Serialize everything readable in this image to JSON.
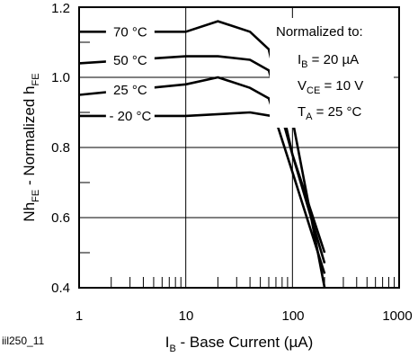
{
  "figure_id": "iil250_11",
  "chart_data": {
    "type": "line",
    "x_scale": "log",
    "xlim": [
      1,
      1000
    ],
    "ylim": [
      0.4,
      1.2
    ],
    "grid": true,
    "x_ticks": [
      "1",
      "10",
      "100",
      "1000"
    ],
    "y_ticks": [
      "0.4",
      "0.6",
      "0.8",
      "1.0",
      "1.2"
    ],
    "xlabel": {
      "prefix": "I",
      "sub": "B",
      "suffix": " - Base Current (µA)"
    },
    "ylabel": {
      "p1": "Nh",
      "sub1": "FE",
      "p2": " - Normalized h",
      "sub2": "FE"
    },
    "annotation": {
      "heading": "Normalized to:",
      "lines": [
        {
          "pre": "I",
          "sub": "B",
          "post": " = 20 µA"
        },
        {
          "pre": "V",
          "sub": "CE",
          "post": " = 10 V"
        },
        {
          "pre": "T",
          "sub": "A",
          "post": " = 25 °C"
        }
      ]
    },
    "series": [
      {
        "name": "70 °C",
        "x": [
          1,
          10,
          20,
          40,
          60,
          100,
          200
        ],
        "y": [
          1.13,
          1.13,
          1.16,
          1.13,
          1.08,
          0.78,
          0.5
        ]
      },
      {
        "name": "50 °C",
        "x": [
          1,
          10,
          20,
          40,
          60,
          100,
          200
        ],
        "y": [
          1.04,
          1.06,
          1.06,
          1.05,
          1.02,
          0.78,
          0.47
        ]
      },
      {
        "name": "25 °C",
        "x": [
          1,
          10,
          20,
          40,
          60,
          100,
          200
        ],
        "y": [
          0.95,
          0.98,
          1.0,
          0.97,
          0.94,
          0.73,
          0.44
        ]
      },
      {
        "name": "- 20 °C",
        "x": [
          1,
          10,
          40,
          100,
          200
        ],
        "y": [
          0.89,
          0.89,
          0.9,
          0.88,
          0.4
        ]
      }
    ]
  }
}
